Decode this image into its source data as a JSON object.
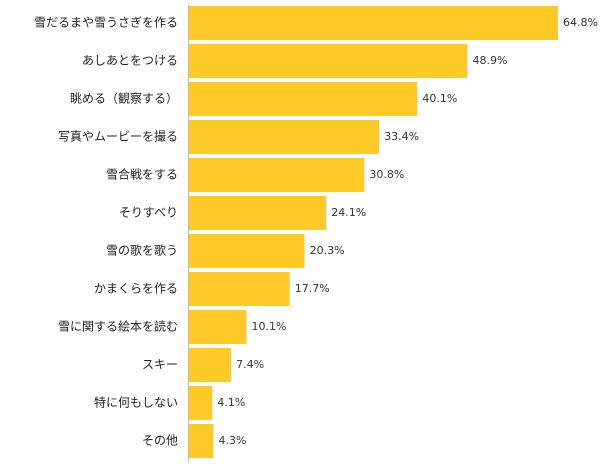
{
  "chart_data": {
    "type": "bar",
    "orientation": "horizontal",
    "categories": [
      "雪だるまや雪うさぎを作る",
      "あしあとをつける",
      "眺める（観察する）",
      "写真やムービーを撮る",
      "雪合戦をする",
      "そりすべり",
      "雪の歌を歌う",
      "かまくらを作る",
      "雪に関する絵本を読む",
      "スキー",
      "特に何もしない",
      "その他"
    ],
    "values": [
      64.8,
      48.9,
      40.1,
      33.4,
      30.8,
      24.1,
      20.3,
      17.7,
      10.1,
      7.4,
      4.1,
      4.3
    ],
    "value_labels": [
      "64.8%",
      "48.9%",
      "40.1%",
      "33.4%",
      "30.8%",
      "24.1%",
      "20.3%",
      "17.7%",
      "10.1%",
      "7.4%",
      "4.1%",
      "4.3%"
    ],
    "unit": "%",
    "xlim": [
      0,
      70
    ],
    "grid": false,
    "legend": "none",
    "bar_color": "#FFC928"
  }
}
